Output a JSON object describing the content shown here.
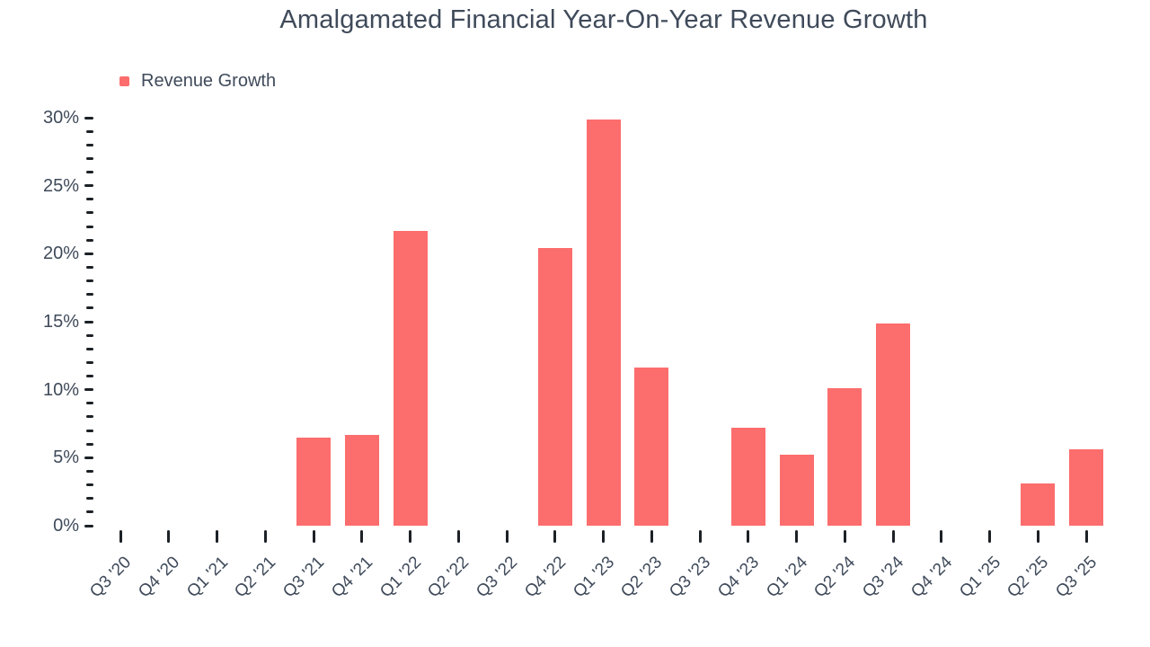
{
  "chart_data": {
    "type": "bar",
    "title": "Amalgamated Financial Year-On-Year Revenue Growth",
    "legend_label": "Revenue Growth",
    "legend_position": "top-left",
    "categories": [
      "Q3 '20",
      "Q4 '20",
      "Q1 '21",
      "Q2 '21",
      "Q3 '21",
      "Q4 '21",
      "Q1 '22",
      "Q2 '22",
      "Q3 '22",
      "Q4 '22",
      "Q1 '23",
      "Q2 '23",
      "Q3 '23",
      "Q4 '23",
      "Q1 '24",
      "Q2 '24",
      "Q3 '24",
      "Q4 '24",
      "Q1 '25",
      "Q2 '25",
      "Q3 '25"
    ],
    "series": [
      {
        "name": "Revenue Growth",
        "values": [
          null,
          null,
          null,
          null,
          6.5,
          6.7,
          21.7,
          null,
          null,
          20.4,
          29.9,
          11.6,
          null,
          7.2,
          5.2,
          10.1,
          14.9,
          null,
          null,
          3.1,
          5.6
        ]
      }
    ],
    "value_unit": "%",
    "xlabel": "",
    "ylabel": "",
    "ylim": [
      0,
      30
    ],
    "ytick_values": [
      0,
      5,
      10,
      15,
      20,
      25,
      30
    ],
    "ytick_labels": [
      "0%",
      "5%",
      "10%",
      "15%",
      "20%",
      "25%",
      "30%"
    ],
    "minor_ytick_step": 1,
    "grid": false,
    "bar_color": "#FC6D6D",
    "text_color": "#3F4A5A",
    "tick_color": "#1C2126"
  }
}
